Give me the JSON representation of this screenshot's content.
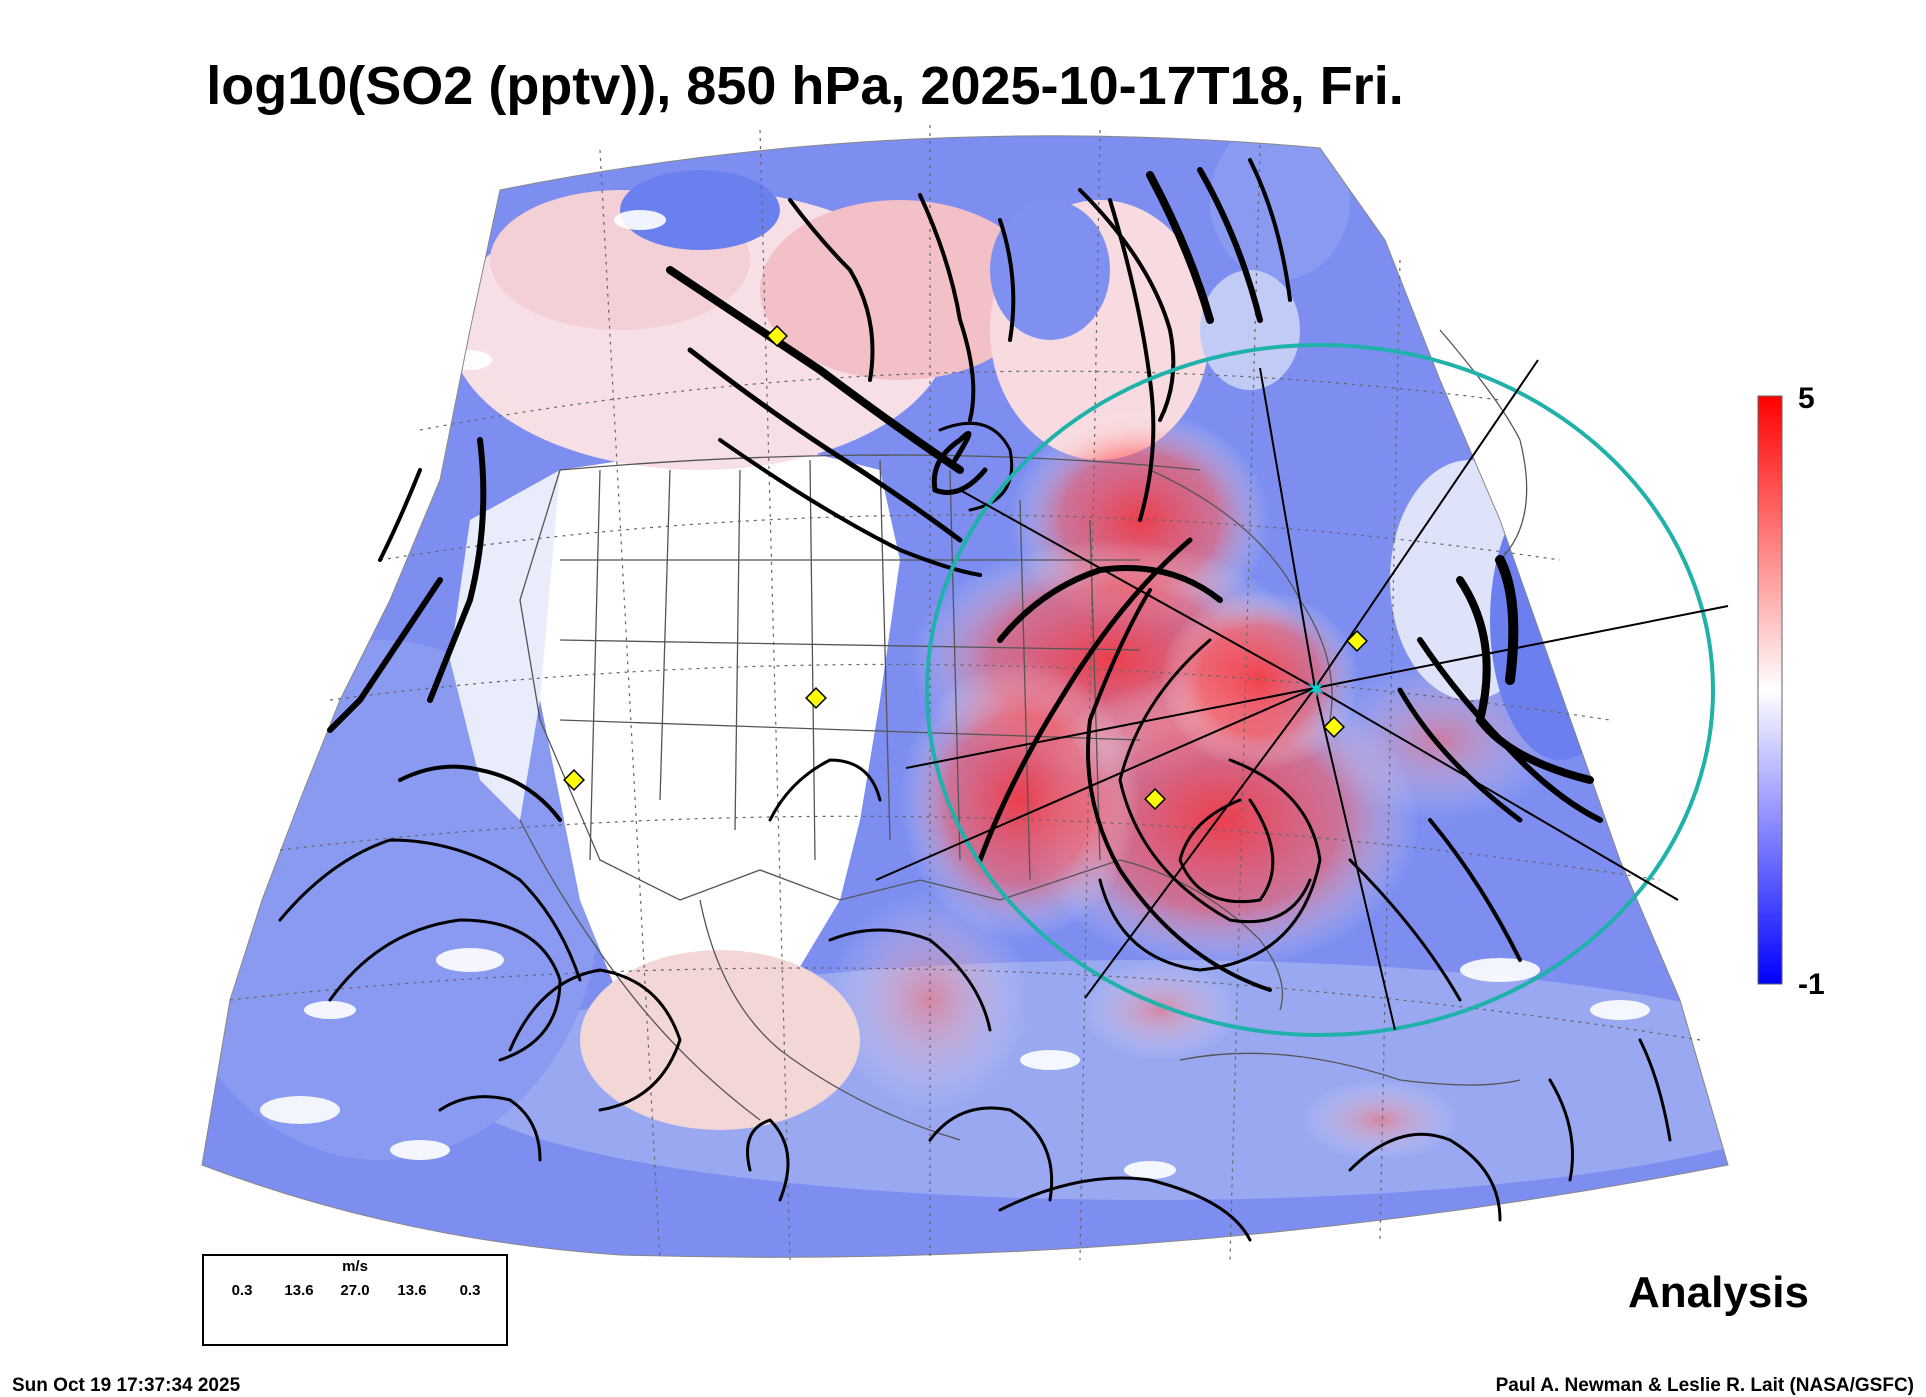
{
  "title": "log10(SO2 (pptv)), 850 hPa, 2025-10-17T18, Fri.",
  "colorbar": {
    "max_label": "5",
    "min_label": "-1",
    "vmax": 5,
    "vmin": -1,
    "color_low": "#0000ff",
    "color_mid": "#ffffff",
    "color_high": "#ff0000"
  },
  "wind_legend": {
    "unit": "m/s",
    "speeds": [
      "0.3",
      "13.6",
      "27.0",
      "13.6",
      "0.3"
    ]
  },
  "analysis_label": "Analysis",
  "timestamp": "Sun Oct 19 17:37:34 2025",
  "credit": "Paul A. Newman & Leslie R. Lait (NASA/GSFC)",
  "colors": {
    "ring": "#20b2aa",
    "marker": "#ffff00",
    "star": "#00d0d0"
  },
  "map_features": [
    "so2-field",
    "streamlines",
    "state-borders",
    "coastlines",
    "graticule",
    "range-ring",
    "radial-lines",
    "site-markers",
    "center-star"
  ]
}
